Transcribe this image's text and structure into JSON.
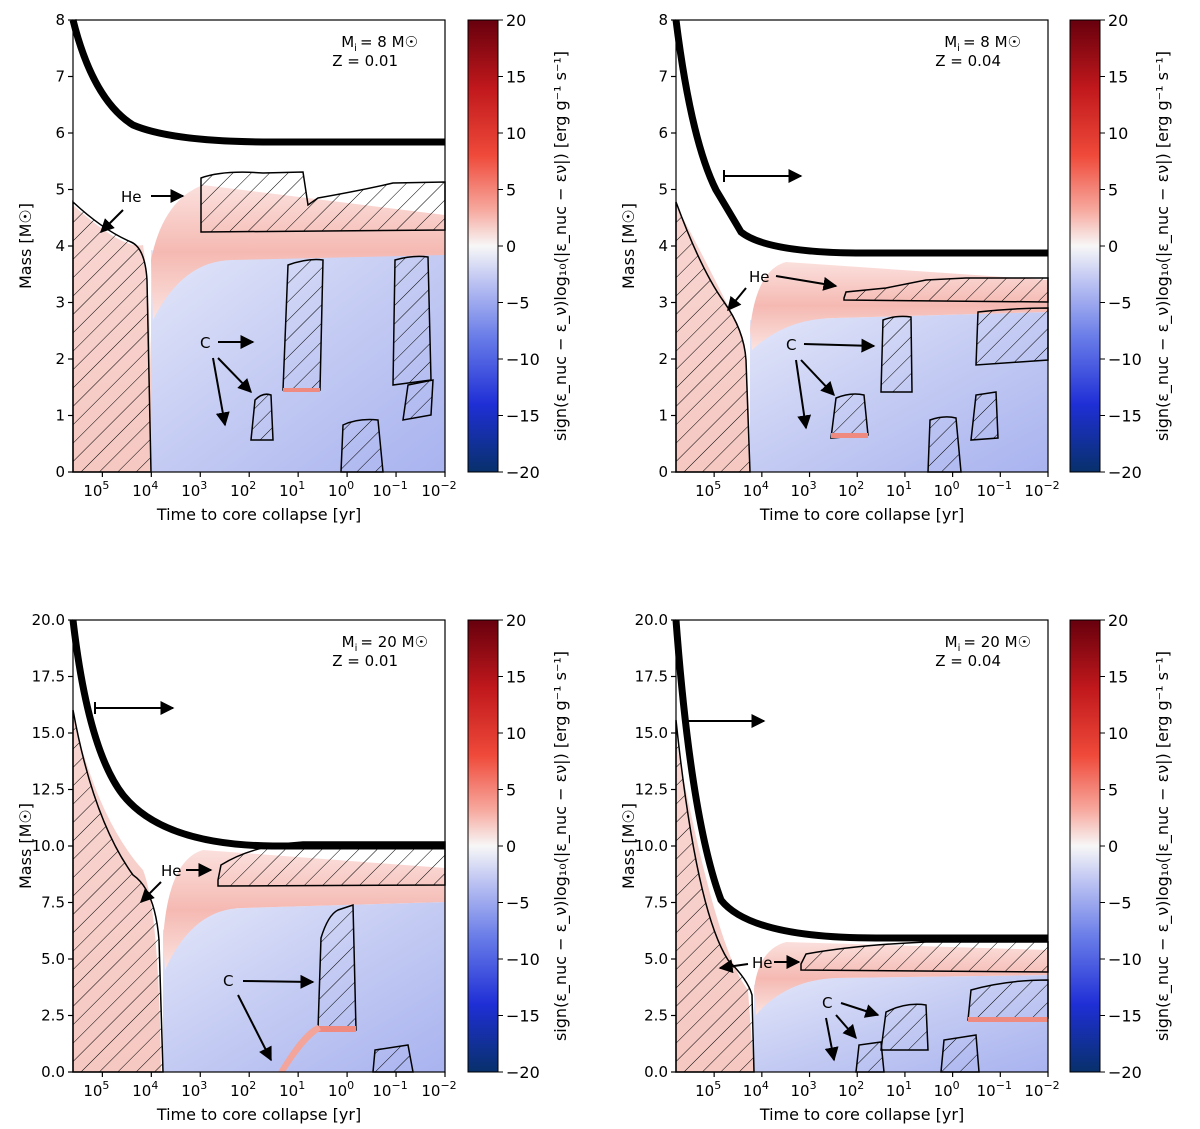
{
  "colorbar": {
    "label": "sign(ε_nuc − ε_ν)log₁₀(|ε_nuc − εν|) [erg g⁻¹ s⁻¹]",
    "ticks": [
      "20",
      "15",
      "10",
      "5",
      "0",
      "−5",
      "−10",
      "−15",
      "−20"
    ],
    "range": [
      -20,
      20
    ],
    "colors": {
      "max": "#67000d",
      "mid": "#f7f7f7",
      "min": "#08306b",
      "pos": "#f4a5a0",
      "neg": "#c6cdf3"
    }
  },
  "chart_data": [
    {
      "type": "heatmap",
      "title_mass": "M",
      "title_mass_sub": "i",
      "title_mass_value": "= 8 M",
      "metallicity": "Z = 0.01",
      "xlabel": "Time to core collapse [yr]",
      "ylabel": "Mass [M",
      "ylabel_end": "]",
      "x_ticks": [
        {
          "base": "10",
          "exp": "5"
        },
        {
          "base": "10",
          "exp": "4"
        },
        {
          "base": "10",
          "exp": "3"
        },
        {
          "base": "10",
          "exp": "2"
        },
        {
          "base": "10",
          "exp": "1"
        },
        {
          "base": "10",
          "exp": "0"
        },
        {
          "base": "10",
          "exp": "−1"
        },
        {
          "base": "10",
          "exp": "−2"
        }
      ],
      "y_ticks": [
        "8",
        "7",
        "6",
        "5",
        "4",
        "3",
        "2",
        "1",
        "0"
      ],
      "ylim": [
        0,
        8
      ],
      "xlim_log_years": [
        5.6,
        -2
      ],
      "star_mass_final": 5.85,
      "annotations": [
        "He",
        "C"
      ]
    },
    {
      "type": "heatmap",
      "title_mass": "M",
      "title_mass_sub": "i",
      "title_mass_value": "= 8 M",
      "metallicity": "Z = 0.04",
      "xlabel": "Time to core collapse [yr]",
      "ylabel": "Mass [M",
      "ylabel_end": "]",
      "x_ticks": [
        {
          "base": "10",
          "exp": "5"
        },
        {
          "base": "10",
          "exp": "4"
        },
        {
          "base": "10",
          "exp": "3"
        },
        {
          "base": "10",
          "exp": "2"
        },
        {
          "base": "10",
          "exp": "1"
        },
        {
          "base": "10",
          "exp": "0"
        },
        {
          "base": "10",
          "exp": "−1"
        },
        {
          "base": "10",
          "exp": "−2"
        }
      ],
      "y_ticks": [
        "8",
        "7",
        "6",
        "5",
        "4",
        "3",
        "2",
        "1",
        "0"
      ],
      "ylim": [
        0,
        8
      ],
      "xlim_log_years": [
        5.8,
        -2
      ],
      "star_mass_final": 3.9,
      "annotations": [
        "He",
        "C"
      ]
    },
    {
      "type": "heatmap",
      "title_mass": "M",
      "title_mass_sub": "i",
      "title_mass_value": "= 20 M",
      "metallicity": "Z = 0.01",
      "xlabel": "Time to core collapse [yr]",
      "ylabel": "Mass [M",
      "ylabel_end": "]",
      "x_ticks": [
        {
          "base": "10",
          "exp": "5"
        },
        {
          "base": "10",
          "exp": "4"
        },
        {
          "base": "10",
          "exp": "3"
        },
        {
          "base": "10",
          "exp": "2"
        },
        {
          "base": "10",
          "exp": "1"
        },
        {
          "base": "10",
          "exp": "0"
        },
        {
          "base": "10",
          "exp": "−1"
        },
        {
          "base": "10",
          "exp": "−2"
        }
      ],
      "y_ticks": [
        "20.0",
        "17.5",
        "15.0",
        "12.5",
        "10.0",
        "7.5",
        "5.0",
        "2.5",
        "0.0"
      ],
      "ylim": [
        0,
        20
      ],
      "xlim_log_years": [
        5.6,
        -2
      ],
      "star_mass_final": 10.0,
      "annotations": [
        "He",
        "C"
      ]
    },
    {
      "type": "heatmap",
      "title_mass": "M",
      "title_mass_sub": "i",
      "title_mass_value": "= 20 M",
      "metallicity": "Z = 0.04",
      "xlabel": "Time to core collapse [yr]",
      "ylabel": "Mass [M",
      "ylabel_end": "]",
      "x_ticks": [
        {
          "base": "10",
          "exp": "5"
        },
        {
          "base": "10",
          "exp": "4"
        },
        {
          "base": "10",
          "exp": "3"
        },
        {
          "base": "10",
          "exp": "2"
        },
        {
          "base": "10",
          "exp": "1"
        },
        {
          "base": "10",
          "exp": "0"
        },
        {
          "base": "10",
          "exp": "−1"
        },
        {
          "base": "10",
          "exp": "−2"
        }
      ],
      "y_ticks": [
        "20.0",
        "17.5",
        "15.0",
        "12.5",
        "10.0",
        "7.5",
        "5.0",
        "2.5",
        "0.0"
      ],
      "ylim": [
        0,
        20
      ],
      "xlim_log_years": [
        5.8,
        -2
      ],
      "star_mass_final": 5.9,
      "annotations": [
        "He",
        "C"
      ]
    }
  ]
}
